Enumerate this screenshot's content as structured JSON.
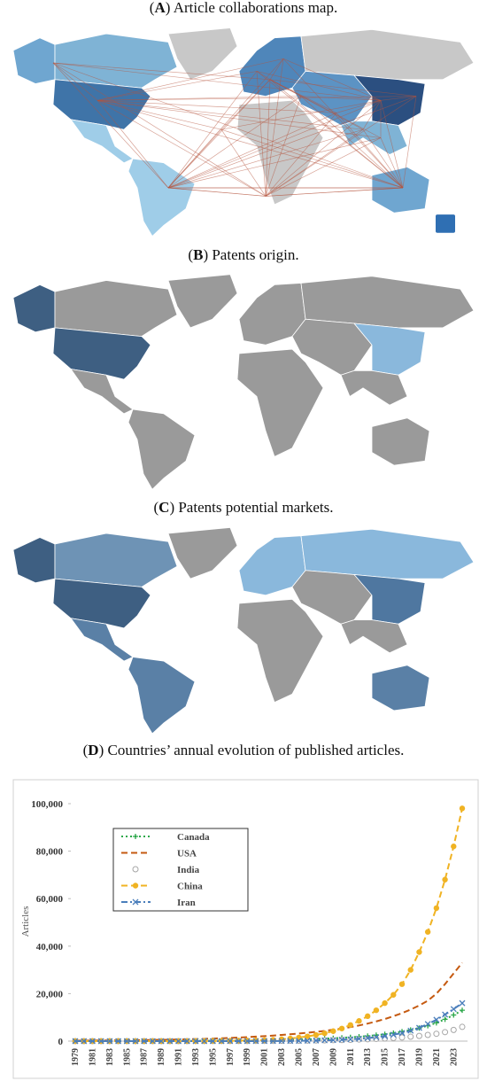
{
  "panels": [
    {
      "title_parts": [
        "(",
        "A",
        ") Article collaborations map."
      ]
    },
    {
      "title_parts": [
        "(",
        "B",
        ") Patents origin."
      ]
    },
    {
      "title_parts": [
        "(",
        "C",
        ") Patents potential markets."
      ]
    }
  ],
  "chart_data": {
    "type": "line",
    "title_parts": [
      "(",
      "D",
      ") Countries’ annual evolution of published articles."
    ],
    "ylabel": "Articles",
    "categories": [
      "1979",
      null,
      "1981",
      null,
      "1983",
      null,
      "1985",
      null,
      "1987",
      null,
      "1989",
      null,
      "1991",
      null,
      "1993",
      null,
      "1995",
      null,
      "1997",
      null,
      "1999",
      null,
      "2001",
      null,
      "2003",
      null,
      "2005",
      null,
      "2007",
      null,
      "2009",
      null,
      "2011",
      null,
      "2013",
      null,
      "2015",
      null,
      "2017",
      null,
      "2019",
      null,
      "2021",
      null,
      "2023",
      null
    ],
    "ylim": [
      0,
      100000
    ],
    "yticks": [
      0,
      {
        "value": 20000,
        "label": "20,000"
      },
      {
        "value": 40000,
        "label": "40,000"
      },
      {
        "value": 60000,
        "label": "60,000"
      },
      {
        "value": 80000,
        "label": "80,000"
      },
      {
        "value": 100000,
        "label": "100,000"
      }
    ],
    "series": [
      {
        "name": "Canada",
        "color": "#2ca84a",
        "line": "dotted",
        "marker": "plus",
        "values": [
          20,
          20,
          25,
          30,
          30,
          35,
          40,
          45,
          50,
          60,
          70,
          80,
          90,
          100,
          120,
          140,
          160,
          190,
          220,
          260,
          300,
          350,
          400,
          460,
          530,
          610,
          700,
          800,
          920,
          1050,
          1200,
          1400,
          1600,
          1850,
          2150,
          2500,
          2900,
          3400,
          4000,
          4700,
          5500,
          6500,
          7700,
          9200,
          11000,
          13000
        ]
      },
      {
        "name": "USA",
        "color": "#c55a11",
        "line": "dashed",
        "marker": "none",
        "values": [
          200,
          220,
          250,
          280,
          300,
          330,
          360,
          400,
          450,
          500,
          560,
          620,
          700,
          780,
          870,
          970,
          1080,
          1200,
          1350,
          1500,
          1700,
          1900,
          2100,
          2350,
          2600,
          2900,
          3200,
          3550,
          3900,
          4300,
          4800,
          5300,
          5900,
          6600,
          7400,
          8300,
          9300,
          10500,
          11800,
          13300,
          15000,
          17000,
          20000,
          24000,
          28500,
          33000
        ]
      },
      {
        "name": "India",
        "color": "#a6a6a6",
        "line": "none",
        "marker": "circle-open",
        "values": [
          0,
          0,
          0,
          0,
          0,
          0,
          0,
          0,
          0,
          0,
          5,
          5,
          10,
          10,
          15,
          20,
          25,
          30,
          40,
          50,
          60,
          70,
          90,
          110,
          130,
          160,
          190,
          230,
          280,
          330,
          400,
          480,
          570,
          680,
          800,
          950,
          1100,
          1300,
          1550,
          1850,
          2200,
          2600,
          3100,
          3800,
          4700,
          6000
        ]
      },
      {
        "name": "China",
        "color": "#f0b323",
        "line": "dashed",
        "marker": "circle",
        "values": [
          0,
          0,
          0,
          0,
          0,
          0,
          0,
          0,
          10,
          10,
          20,
          20,
          30,
          40,
          50,
          70,
          90,
          120,
          150,
          200,
          250,
          320,
          400,
          550,
          800,
          1100,
          1500,
          2000,
          2600,
          3300,
          4200,
          5300,
          6800,
          8500,
          10500,
          13000,
          16000,
          19500,
          24000,
          30000,
          37500,
          46000,
          56000,
          68000,
          82000,
          98000
        ]
      },
      {
        "name": "Iran",
        "color": "#4a7ebb",
        "line": "dashdot",
        "marker": "x",
        "values": [
          0,
          0,
          0,
          0,
          0,
          0,
          0,
          0,
          0,
          0,
          0,
          0,
          0,
          0,
          0,
          0,
          5,
          5,
          10,
          10,
          15,
          20,
          30,
          40,
          60,
          90,
          130,
          180,
          250,
          340,
          450,
          600,
          780,
          1000,
          1300,
          1650,
          2100,
          2700,
          3400,
          4400,
          5600,
          7200,
          9000,
          11200,
          13500,
          16000
        ]
      }
    ]
  }
}
